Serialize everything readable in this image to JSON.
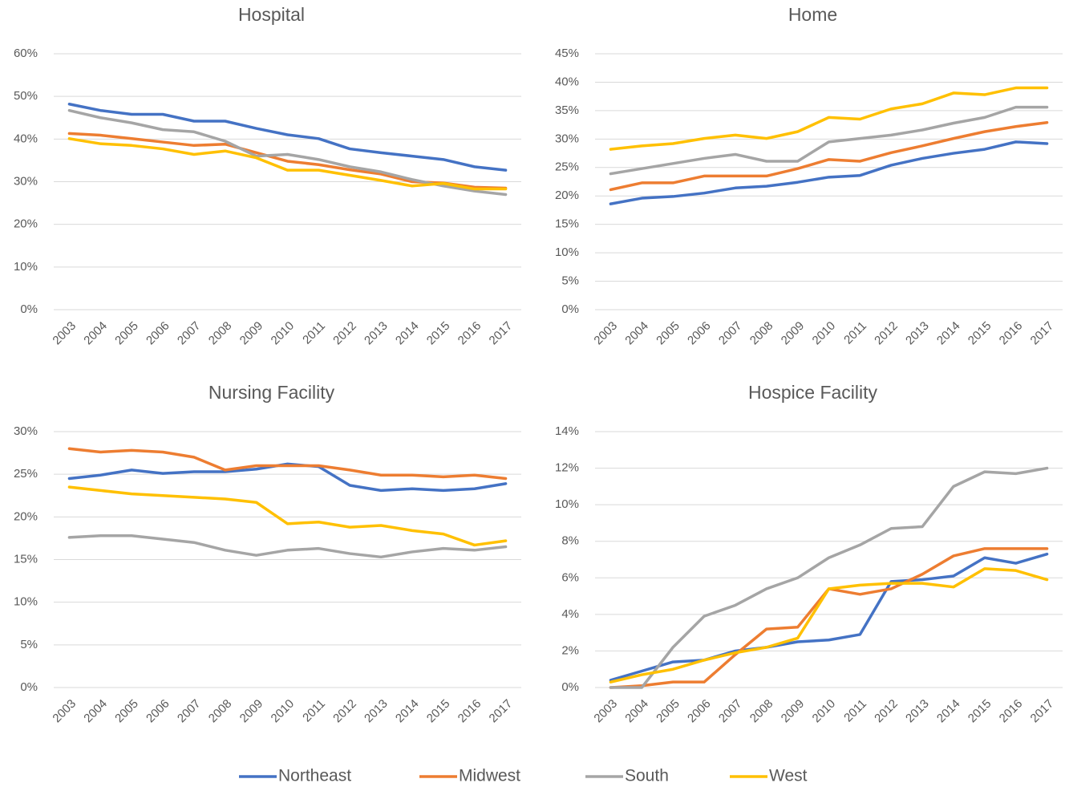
{
  "chart_data": [
    {
      "type": "line",
      "title": "Hospital",
      "categories": [
        "2003",
        "2004",
        "2005",
        "2006",
        "2007",
        "2008",
        "2009",
        "2010",
        "2011",
        "2012",
        "2013",
        "2014",
        "2015",
        "2016",
        "2017"
      ],
      "series": [
        {
          "name": "Northeast",
          "color": "#4472c4",
          "values": [
            48.2,
            46.7,
            45.8,
            45.8,
            44.2,
            44.2,
            42.5,
            41,
            40.1,
            37.7,
            36.8,
            36,
            35.2,
            33.5,
            32.7
          ]
        },
        {
          "name": "Midwest",
          "color": "#ed7d31",
          "values": [
            41.3,
            40.9,
            40.1,
            39.3,
            38.5,
            38.8,
            36.8,
            34.8,
            34,
            32.8,
            31.8,
            30,
            29.7,
            28.7,
            28.5
          ]
        },
        {
          "name": "South",
          "color": "#a5a5a5",
          "values": [
            46.7,
            45,
            43.8,
            42.2,
            41.7,
            39.5,
            36,
            36.4,
            35.2,
            33.5,
            32.3,
            30.5,
            29,
            27.8,
            27
          ]
        },
        {
          "name": "West",
          "color": "#ffc000",
          "values": [
            40.1,
            38.9,
            38.5,
            37.7,
            36.4,
            37.2,
            35.6,
            32.7,
            32.7,
            31.5,
            30.3,
            29,
            29.6,
            28.3,
            28.3
          ]
        }
      ],
      "ylim": [
        0,
        60
      ],
      "yticks": [
        {
          "value": 0,
          "label": "0%"
        },
        {
          "value": 10,
          "label": "10%"
        },
        {
          "value": 20,
          "label": "20%"
        },
        {
          "value": 30,
          "label": "30%"
        },
        {
          "value": 40,
          "label": "40%"
        },
        {
          "value": 50,
          "label": "50%"
        },
        {
          "value": 60,
          "label": "60%"
        }
      ],
      "grid": true
    },
    {
      "type": "line",
      "title": "Home",
      "categories": [
        "2003",
        "2004",
        "2005",
        "2006",
        "2007",
        "2008",
        "2009",
        "2010",
        "2011",
        "2012",
        "2013",
        "2014",
        "2015",
        "2016",
        "2017"
      ],
      "series": [
        {
          "color": "#4472c4",
          "values": [
            18.6,
            19.6,
            19.9,
            20.5,
            21.4,
            21.7,
            22.4,
            23.3,
            23.6,
            25.4,
            26.6,
            27.5,
            28.2,
            29.5,
            29.2
          ]
        },
        {
          "color": "#ed7d31",
          "values": [
            21.1,
            22.3,
            22.3,
            23.5,
            23.5,
            23.5,
            24.8,
            26.4,
            26.1,
            27.6,
            28.8,
            30.1,
            31.3,
            32.2,
            32.9
          ]
        },
        {
          "color": "#a5a5a5",
          "values": [
            23.9,
            24.8,
            25.7,
            26.6,
            27.3,
            26.1,
            26.1,
            29.5,
            30.1,
            30.7,
            31.6,
            32.8,
            33.8,
            35.6,
            35.6
          ]
        },
        {
          "color": "#ffc000",
          "values": [
            28.2,
            28.8,
            29.2,
            30.1,
            30.7,
            30.1,
            31.3,
            33.8,
            33.5,
            35.3,
            36.2,
            38.1,
            37.8,
            39,
            39
          ]
        }
      ],
      "ylim": [
        0,
        45
      ],
      "yticks": [
        {
          "value": 0,
          "label": "0%"
        },
        {
          "value": 5,
          "label": "5%"
        },
        {
          "value": 10,
          "label": "10%"
        },
        {
          "value": 15,
          "label": "15%"
        },
        {
          "value": 20,
          "label": "20%"
        },
        {
          "value": 25,
          "label": "25%"
        },
        {
          "value": 30,
          "label": "30%"
        },
        {
          "value": 35,
          "label": "35%"
        },
        {
          "value": 40,
          "label": "40%"
        },
        {
          "value": 45,
          "label": "45%"
        }
      ],
      "grid": true
    },
    {
      "type": "line",
      "title": "Nursing Facility",
      "categories": [
        "2003",
        "2004",
        "2005",
        "2006",
        "2007",
        "2008",
        "2009",
        "2010",
        "2011",
        "2012",
        "2013",
        "2014",
        "2015",
        "2016",
        "2017"
      ],
      "series": [
        {
          "color": "#4472c4",
          "values": [
            24.5,
            24.9,
            25.5,
            25.1,
            25.3,
            25.3,
            25.6,
            26.2,
            25.9,
            23.7,
            23.1,
            23.3,
            23.1,
            23.3,
            23.9
          ]
        },
        {
          "color": "#ed7d31",
          "values": [
            28,
            27.6,
            27.8,
            27.6,
            27,
            25.5,
            26,
            26,
            26,
            25.5,
            24.9,
            24.9,
            24.7,
            24.9,
            24.5
          ]
        },
        {
          "color": "#a5a5a5",
          "values": [
            17.6,
            17.8,
            17.8,
            17.4,
            17,
            16.1,
            15.5,
            16.1,
            16.3,
            15.7,
            15.3,
            15.9,
            16.3,
            16.1,
            16.5
          ]
        },
        {
          "color": "#ffc000",
          "values": [
            23.5,
            23.1,
            22.7,
            22.5,
            22.3,
            22.1,
            21.7,
            19.2,
            19.4,
            18.8,
            19,
            18.4,
            18,
            16.7,
            17.2
          ]
        }
      ],
      "ylim": [
        0,
        30
      ],
      "yticks": [
        {
          "value": 0,
          "label": "0%"
        },
        {
          "value": 5,
          "label": "5%"
        },
        {
          "value": 10,
          "label": "10%"
        },
        {
          "value": 15,
          "label": "15%"
        },
        {
          "value": 20,
          "label": "20%"
        },
        {
          "value": 25,
          "label": "25%"
        },
        {
          "value": 30,
          "label": "30%"
        }
      ],
      "grid": true
    },
    {
      "type": "line",
      "title": "Hospice Facility",
      "categories": [
        "2003",
        "2004",
        "2005",
        "2006",
        "2007",
        "2008",
        "2009",
        "2010",
        "2011",
        "2012",
        "2013",
        "2014",
        "2015",
        "2016",
        "2017"
      ],
      "series": [
        {
          "color": "#4472c4",
          "values": [
            0.4,
            0.9,
            1.4,
            1.5,
            2.0,
            2.2,
            2.5,
            2.6,
            2.9,
            5.8,
            5.9,
            6.1,
            7.1,
            6.8,
            7.3
          ]
        },
        {
          "color": "#ed7d31",
          "values": [
            0,
            0.1,
            0.3,
            0.3,
            1.8,
            3.2,
            3.3,
            5.4,
            5.1,
            5.4,
            6.2,
            7.2,
            7.6,
            7.6,
            7.6
          ]
        },
        {
          "color": "#a5a5a5",
          "values": [
            0,
            0,
            2.2,
            3.9,
            4.5,
            5.4,
            6.0,
            7.1,
            7.8,
            8.7,
            8.8,
            11.0,
            11.8,
            11.7,
            12.0
          ]
        },
        {
          "color": "#ffc000",
          "values": [
            0.3,
            0.7,
            1.0,
            1.5,
            1.9,
            2.2,
            2.7,
            5.4,
            5.6,
            5.7,
            5.7,
            5.5,
            6.5,
            6.4,
            5.9
          ]
        }
      ],
      "ylim": [
        0,
        14
      ],
      "yticks": [
        {
          "value": 0,
          "label": "0%"
        },
        {
          "value": 2,
          "label": "2%"
        },
        {
          "value": 4,
          "label": "4%"
        },
        {
          "value": 6,
          "label": "6%"
        },
        {
          "value": 8,
          "label": "8%"
        },
        {
          "value": 10,
          "label": "10%"
        },
        {
          "value": 12,
          "label": "12%"
        },
        {
          "value": 14,
          "label": "14%"
        }
      ],
      "grid": true
    }
  ]
}
